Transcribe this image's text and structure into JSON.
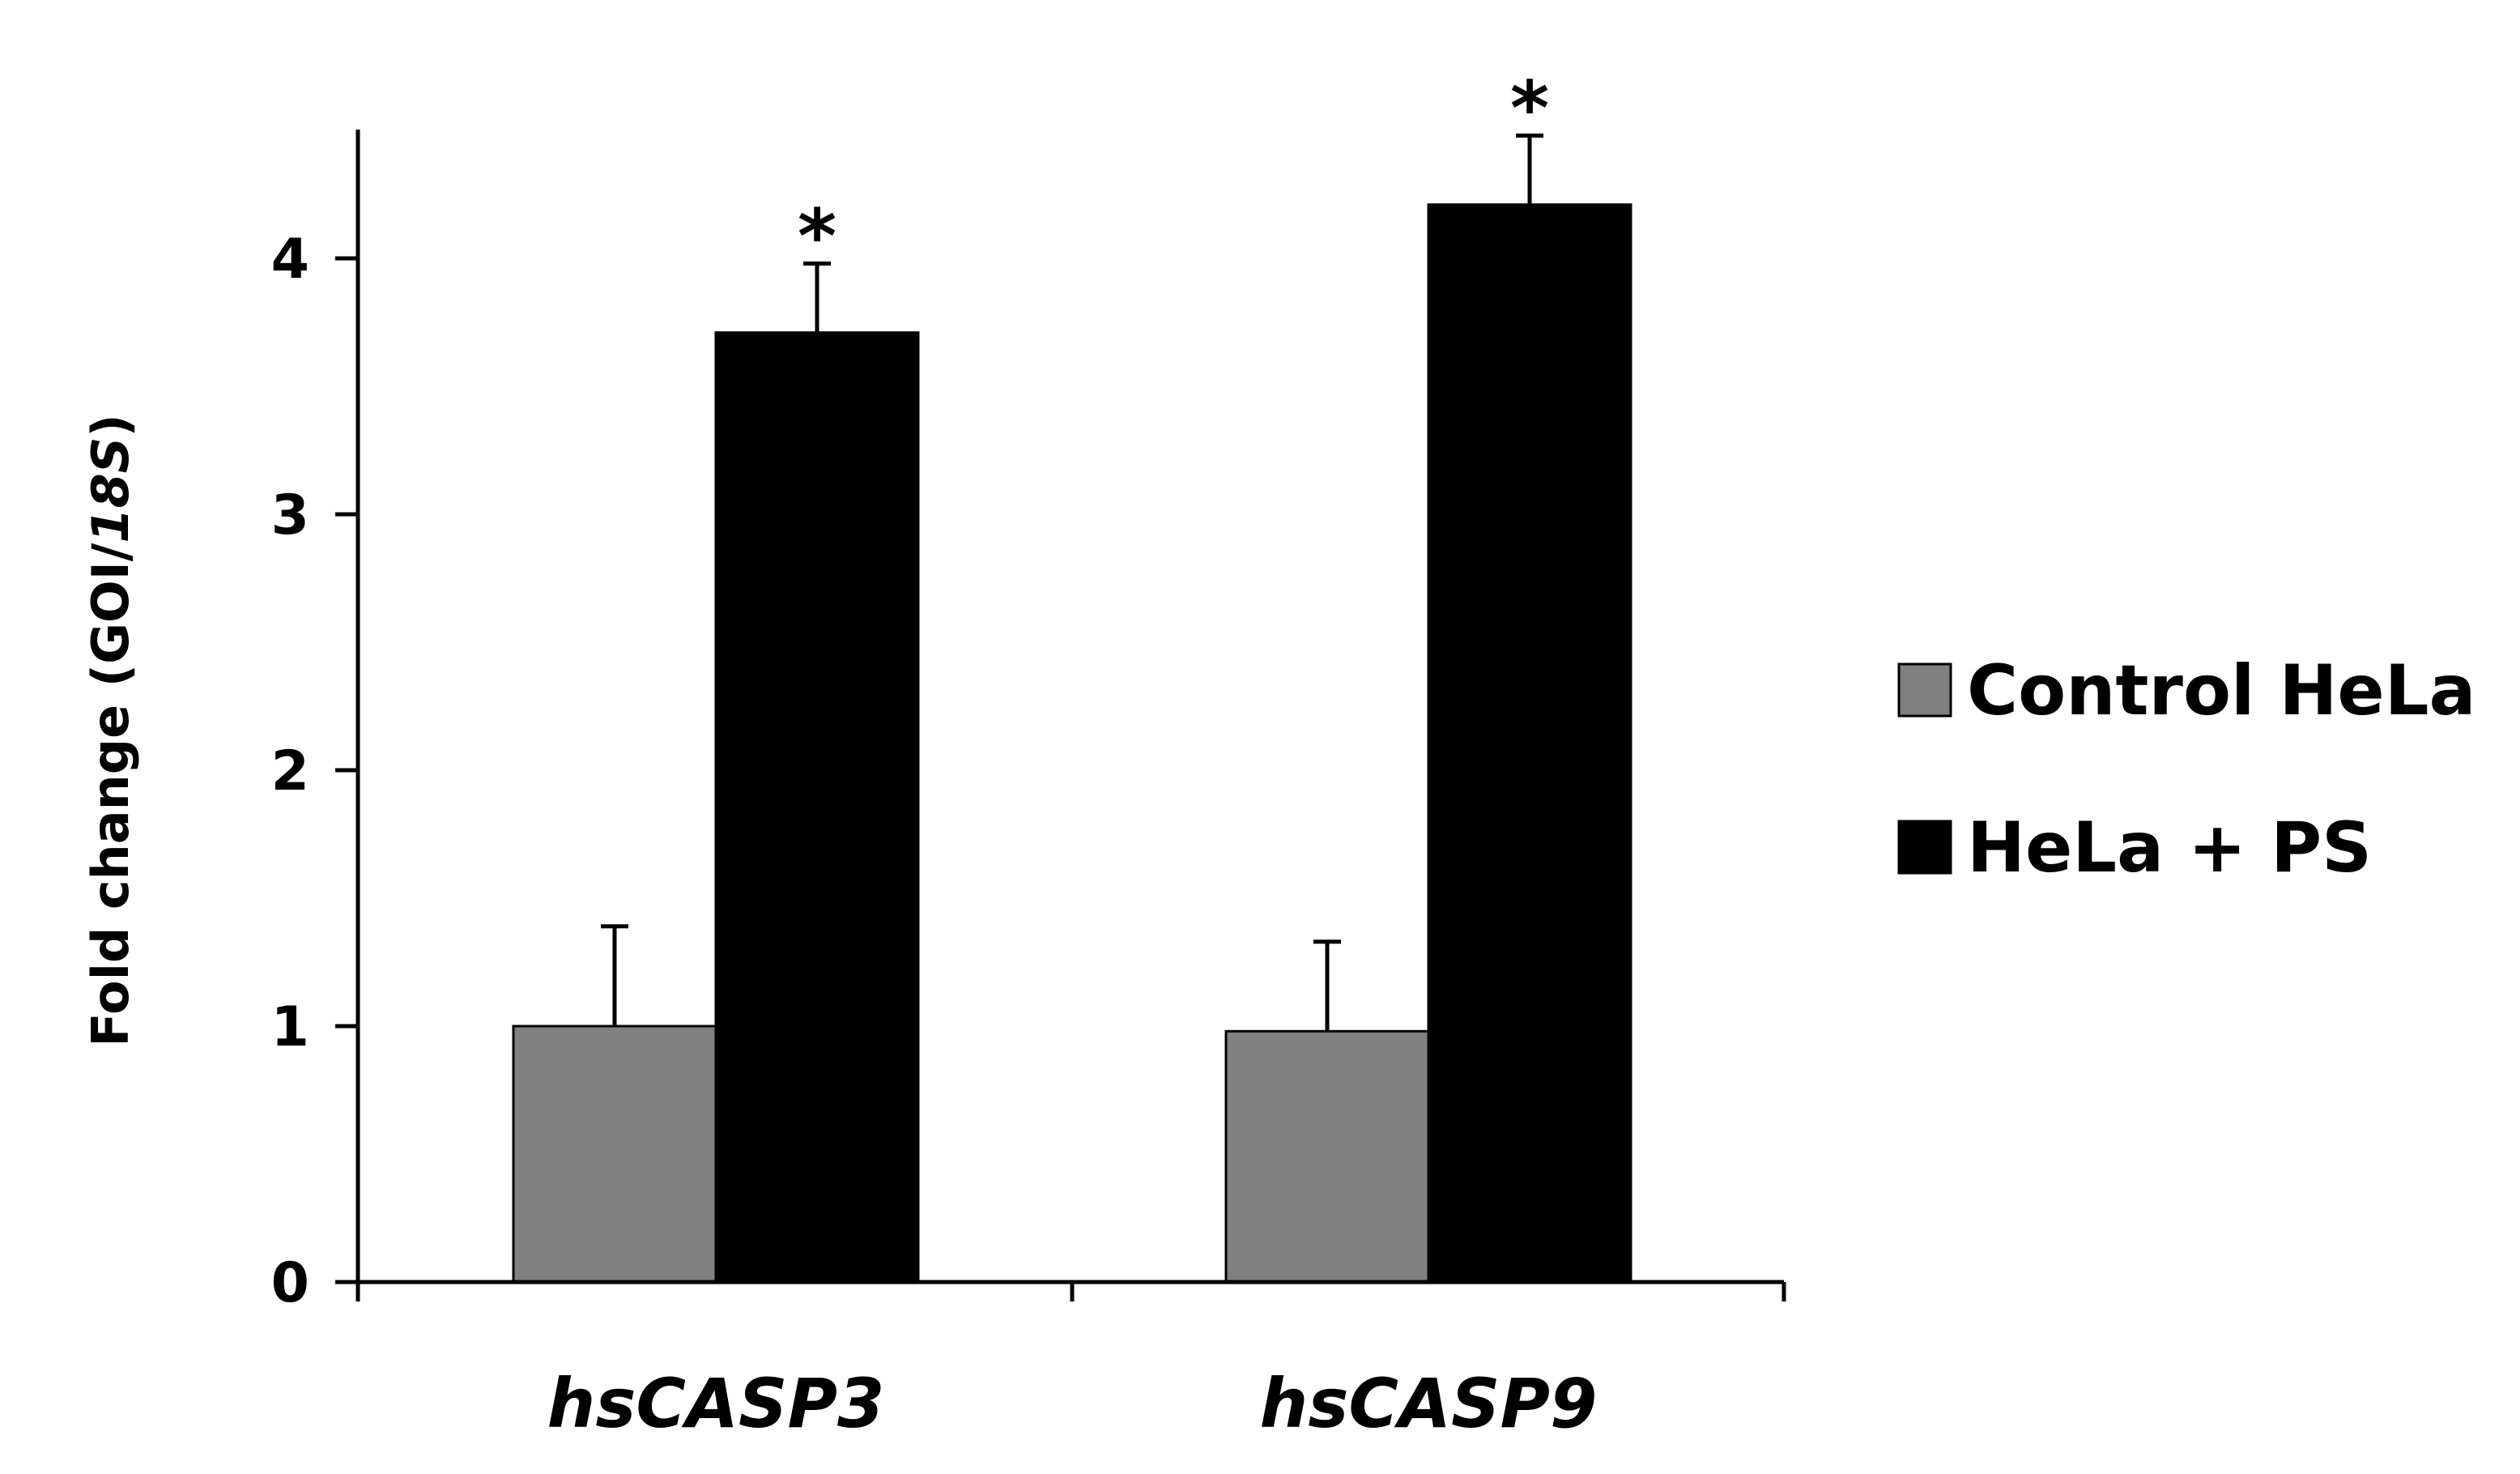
{
  "chart_data": {
    "type": "bar",
    "title": "",
    "xlabel": "",
    "ylabel": {
      "prefix": "Fold change (GOI/",
      "italic": "18S",
      "suffix": ")"
    },
    "categories": [
      "hsCASP3",
      "hsCASP9"
    ],
    "ylim": [
      0,
      4.5
    ],
    "yticks": [
      "0",
      "1",
      "2",
      "3",
      "4"
    ],
    "grid": false,
    "legend_position": "right",
    "series": [
      {
        "name": "Control HeLa",
        "color": "#808080",
        "values": [
          1.0,
          0.98
        ],
        "error_upper": [
          0.39,
          0.35
        ],
        "annotations": [
          "",
          ""
        ]
      },
      {
        "name": "HeLa + PS",
        "color": "#000000",
        "values": [
          3.71,
          4.21
        ],
        "error_upper": [
          0.27,
          0.27
        ],
        "annotations": [
          "*",
          "*"
        ]
      }
    ]
  }
}
